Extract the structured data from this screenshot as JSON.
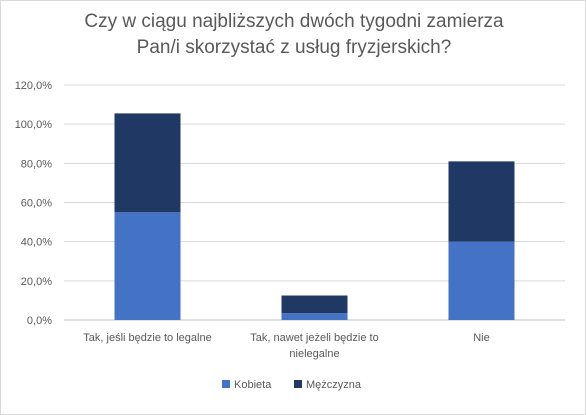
{
  "chart_data": {
    "type": "bar",
    "stacked": true,
    "title_lines": [
      "Czy w ciągu najbliższych dwóch tygodni zamierza",
      "Pan/i skorzystać z usług fryzjerskich?"
    ],
    "categories": [
      [
        "Tak, jeśli będzie to legalne"
      ],
      [
        "Tak, nawet jeżeli będzie to",
        "nielegalne"
      ],
      [
        "Nie"
      ]
    ],
    "series": [
      {
        "name": "Kobieta",
        "values": [
          55.0,
          3.5,
          40.0
        ],
        "color": "#4472c4"
      },
      {
        "name": "Mężczyzna",
        "values": [
          50.5,
          9.0,
          41.0
        ],
        "color": "#203864"
      }
    ],
    "ylim": [
      0,
      120
    ],
    "yticks": [
      "0,0%",
      "20,0%",
      "40,0%",
      "60,0%",
      "80,0%",
      "100,0%",
      "120,0%"
    ],
    "ytick_values": [
      0,
      20,
      40,
      60,
      80,
      100,
      120
    ],
    "grid": true,
    "legend_position": "bottom",
    "xlabel": "",
    "ylabel": ""
  }
}
